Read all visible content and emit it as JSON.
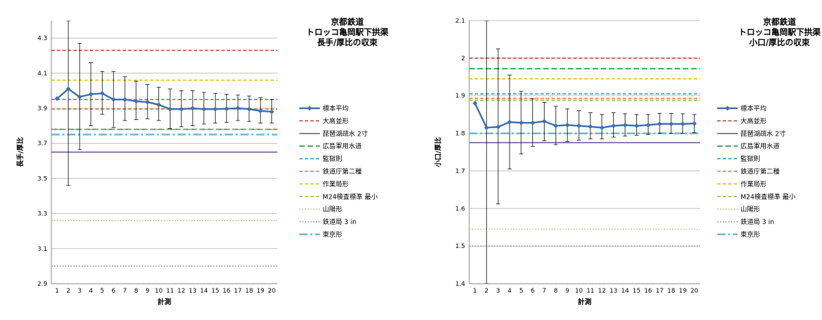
{
  "chart_data": [
    {
      "type": "line",
      "title": [
        "京都鉄道",
        "トロッコ亀岡駅下拱渠",
        "長手/厚比の収束"
      ],
      "xlabel": "計測",
      "ylabel": "長手/厚比",
      "ylim": [
        2.9,
        4.4
      ],
      "yticks": [
        "2.9",
        "3.1",
        "3.3",
        "3.5",
        "3.7",
        "3.9",
        "4.1",
        "4.3"
      ],
      "ytick_values": [
        2.9,
        3.1,
        3.3,
        3.5,
        3.7,
        3.9,
        4.1,
        4.3
      ],
      "x": [
        1,
        2,
        3,
        4,
        5,
        6,
        7,
        8,
        9,
        10,
        11,
        12,
        13,
        14,
        15,
        16,
        17,
        18,
        19,
        20
      ],
      "grid": true,
      "legend_position": "right",
      "series": [
        {
          "name": "標本平均",
          "values": [
            3.955,
            4.01,
            3.965,
            3.98,
            3.985,
            3.95,
            3.95,
            3.94,
            3.935,
            3.92,
            3.895,
            3.895,
            3.9,
            3.895,
            3.895,
            3.897,
            3.9,
            3.895,
            3.885,
            3.88
          ],
          "error_low": [
            null,
            3.46,
            3.665,
            3.8,
            3.865,
            3.79,
            3.83,
            3.835,
            3.84,
            3.83,
            3.785,
            3.795,
            3.8,
            3.81,
            3.815,
            3.82,
            3.83,
            3.825,
            3.815,
            3.815
          ],
          "error_high": [
            null,
            4.4,
            4.27,
            4.16,
            4.11,
            4.11,
            4.08,
            4.055,
            4.035,
            4.02,
            4.01,
            4.0,
            4.0,
            3.99,
            3.985,
            3.98,
            3.975,
            3.97,
            3.96,
            3.95
          ],
          "color": "#3f6fad",
          "style": "line-marker"
        },
        {
          "name": "大高並形",
          "value": 4.23,
          "color": "#c0392b",
          "style": "dashed"
        },
        {
          "name": "琵琶湖疏水 2寸",
          "value": 3.65,
          "color": "#6a4c93",
          "style": "solid"
        },
        {
          "name": "広島軍用水道",
          "value": 3.78,
          "color": "#2eaa4a",
          "style": "dashed-long"
        },
        {
          "name": "監獄則",
          "value": 3.95,
          "color": "#2f8db8",
          "style": "dashed"
        },
        {
          "name": "鉄道庁第二種",
          "value": 3.895,
          "color": "#e07b2a",
          "style": "dashed"
        },
        {
          "name": "作業局形",
          "value": 4.06,
          "color": "#e5b800",
          "style": "dashed"
        },
        {
          "name": "M24検査標準 最小",
          "value": 3.78,
          "color": "#8fb545",
          "style": "dashed"
        },
        {
          "name": "山陽形",
          "value": 3.26,
          "color": "#c8c792",
          "style": "dotted"
        },
        {
          "name": "鉄道局 3 in",
          "value": 3.0,
          "color": "#9c94c8",
          "style": "dotted"
        },
        {
          "name": "東京形",
          "value": 3.75,
          "color": "#6ab7cc",
          "style": "dash-dot"
        }
      ]
    },
    {
      "type": "line",
      "title": [
        "京都鉄道",
        "トロッコ亀岡駅下拱渠",
        "小口/厚比の収束"
      ],
      "xlabel": "計測",
      "ylabel": "小口/厚比",
      "ylim": [
        1.4,
        2.1
      ],
      "yticks": [
        "1.4",
        "1.5",
        "1.6",
        "1.7",
        "1.8",
        "1.9",
        "2",
        "2.1"
      ],
      "ytick_values": [
        1.4,
        1.5,
        1.6,
        1.7,
        1.8,
        1.9,
        2.0,
        2.1
      ],
      "x": [
        1,
        2,
        3,
        4,
        5,
        6,
        7,
        8,
        9,
        10,
        11,
        12,
        13,
        14,
        15,
        16,
        17,
        18,
        19,
        20
      ],
      "grid": true,
      "legend_position": "right",
      "series": [
        {
          "name": "標本平均",
          "values": [
            1.88,
            1.815,
            1.817,
            1.83,
            1.828,
            1.828,
            1.832,
            1.82,
            1.822,
            1.82,
            1.818,
            1.815,
            1.82,
            1.822,
            1.82,
            1.822,
            1.825,
            1.825,
            1.825,
            1.826
          ],
          "error_low": [
            null,
            1.4,
            1.612,
            1.705,
            1.745,
            1.765,
            1.78,
            1.77,
            1.778,
            1.782,
            1.785,
            1.785,
            1.79,
            1.793,
            1.795,
            1.797,
            1.8,
            1.8,
            1.8,
            1.802
          ],
          "error_high": [
            null,
            2.1,
            2.025,
            1.955,
            1.912,
            1.892,
            1.882,
            1.872,
            1.865,
            1.86,
            1.855,
            1.85,
            1.855,
            1.852,
            1.85,
            1.85,
            1.853,
            1.853,
            1.852,
            1.85
          ],
          "color": "#3f6fad",
          "style": "line-marker"
        },
        {
          "name": "大高並形",
          "value": 2.0,
          "color": "#c0392b",
          "style": "dashed"
        },
        {
          "name": "琵琶湖疏水 2寸",
          "value": 1.775,
          "color": "#6a4c93",
          "style": "solid"
        },
        {
          "name": "広島軍用水道",
          "value": 1.972,
          "color": "#2eaa4a",
          "style": "dashed-long"
        },
        {
          "name": "監獄則",
          "value": 1.905,
          "color": "#2f8db8",
          "style": "dashed"
        },
        {
          "name": "鉄道庁第二種",
          "value": 1.893,
          "color": "#e07b2a",
          "style": "dashed"
        },
        {
          "name": "作業局形",
          "value": 1.945,
          "color": "#e5b800",
          "style": "dashed"
        },
        {
          "name": "M24検査標準 最小",
          "value": 1.888,
          "color": "#8fb545",
          "style": "dashed"
        },
        {
          "name": "山陽形",
          "value": 1.545,
          "color": "#c8c792",
          "style": "dotted"
        },
        {
          "name": "鉄道局 3 in",
          "value": 1.5,
          "color": "#9c94c8",
          "style": "dotted"
        },
        {
          "name": "東京形",
          "value": 1.8,
          "color": "#6ab7cc",
          "style": "dash-dot"
        }
      ]
    }
  ]
}
